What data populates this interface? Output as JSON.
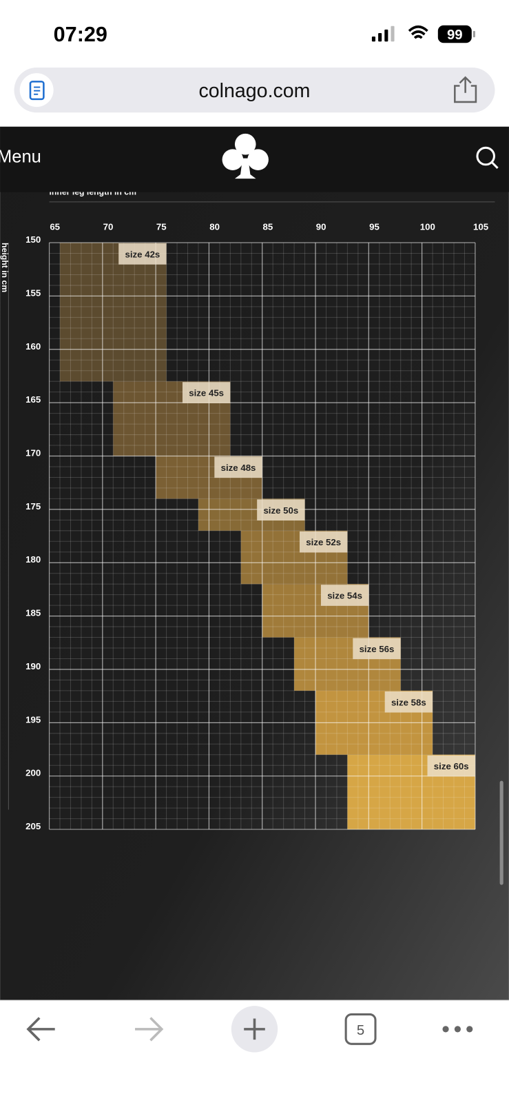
{
  "status_bar": {
    "time": "07:29",
    "battery": "99"
  },
  "address_bar": {
    "url": "colnago.com"
  },
  "site_header": {
    "menu": "Menu"
  },
  "chart_data": {
    "type": "size-chart",
    "x_label": "inner leg length in cm",
    "y_label": "height in cm",
    "xlim": [
      65,
      105
    ],
    "ylim": [
      150,
      205
    ],
    "y_inverted": true,
    "xticks": [
      65,
      70,
      75,
      80,
      85,
      90,
      95,
      100,
      105
    ],
    "yticks": [
      150,
      155,
      160,
      165,
      170,
      175,
      180,
      185,
      190,
      195,
      200,
      205
    ],
    "grid": true,
    "minor_grid": true,
    "sizes": [
      {
        "name": "size 42s",
        "leg": [
          66,
          76
        ],
        "height": [
          150,
          163
        ],
        "color": "#5c4b2f"
      },
      {
        "name": "size 45s",
        "leg": [
          71,
          82
        ],
        "height": [
          163,
          170
        ],
        "color": "#6d5632"
      },
      {
        "name": "size 48s",
        "leg": [
          75,
          85
        ],
        "height": [
          170,
          174
        ],
        "color": "#7b6034"
      },
      {
        "name": "size 50s",
        "leg": [
          79,
          89
        ],
        "height": [
          174,
          177
        ],
        "color": "#876a36"
      },
      {
        "name": "size 52s",
        "leg": [
          83,
          93
        ],
        "height": [
          177,
          182
        ],
        "color": "#937238"
      },
      {
        "name": "size 54s",
        "leg": [
          85,
          95
        ],
        "height": [
          182,
          187
        ],
        "color": "#a07b3a"
      },
      {
        "name": "size 56s",
        "leg": [
          88,
          98
        ],
        "height": [
          187,
          192
        ],
        "color": "#b0873d"
      },
      {
        "name": "size 58s",
        "leg": [
          90,
          101
        ],
        "height": [
          192,
          198
        ],
        "color": "#c29440"
      },
      {
        "name": "size 60s",
        "leg": [
          93,
          105
        ],
        "height": [
          198,
          205
        ],
        "color": "#d6a646"
      }
    ]
  },
  "toolbar": {
    "tabs": "5"
  }
}
